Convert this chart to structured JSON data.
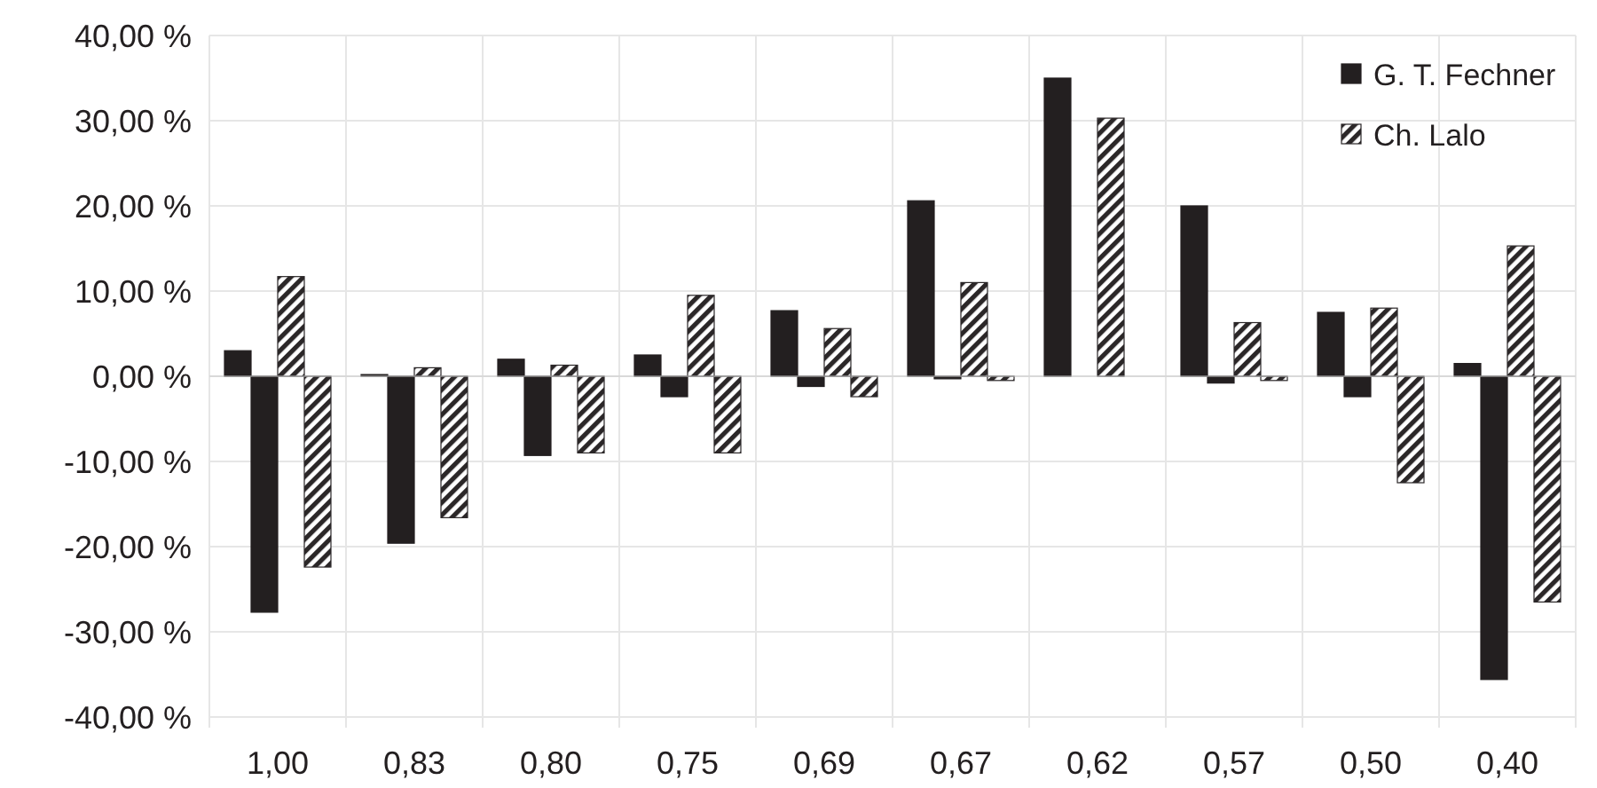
{
  "chart_data": {
    "type": "bar",
    "categories": [
      "1,00",
      "0,83",
      "0,80",
      "0,75",
      "0,69",
      "0,67",
      "0,62",
      "0,57",
      "0,50",
      "0,40"
    ],
    "series": [
      {
        "name": "G. T. Fechner",
        "color": "#231f20",
        "values": [
          3.0,
          0.2,
          2.0,
          2.5,
          7.7,
          20.6,
          35.0,
          20.0,
          7.5,
          1.5
        ]
      },
      {
        "color": "#231f20",
        "values": [
          -27.7,
          -19.6,
          -9.3,
          -2.4,
          -1.2,
          -0.3,
          null,
          -0.8,
          -2.4,
          -35.6
        ]
      },
      {
        "name": "Ch. Lalo",
        "color": "#2b2728",
        "values": [
          11.7,
          1.0,
          1.3,
          9.5,
          5.6,
          11.0,
          30.3,
          6.3,
          8.0,
          15.3
        ]
      },
      {
        "color": "#2b2728",
        "values": [
          -22.4,
          -16.6,
          -9.0,
          -9.0,
          -2.4,
          -0.5,
          null,
          -0.5,
          -12.5,
          -26.5
        ]
      }
    ],
    "ylim": [
      -40,
      40
    ],
    "yticks": [
      {
        "value": -40,
        "label": "-40,00 %"
      },
      {
        "value": -30,
        "label": "-30,00 %"
      },
      {
        "value": -20,
        "label": "-20,00 %"
      },
      {
        "value": -10,
        "label": "-10,00 %"
      },
      {
        "value": 0,
        "label": "0,00 %"
      },
      {
        "value": 10,
        "label": "10,00 %"
      },
      {
        "value": 20,
        "label": "20,00 %"
      },
      {
        "value": 30,
        "label": "30,00 %"
      },
      {
        "value": 40,
        "label": "40,00 %"
      }
    ],
    "grid": true,
    "legend": "top right"
  }
}
